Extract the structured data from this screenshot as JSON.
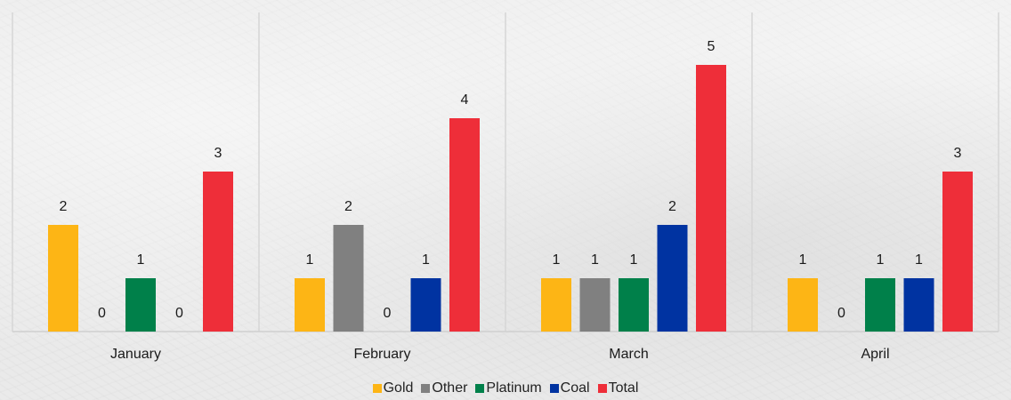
{
  "chart_data": {
    "type": "bar",
    "categories": [
      "January",
      "February",
      "March",
      "April"
    ],
    "series": [
      {
        "name": "Gold",
        "color": "#FDB515",
        "values": [
          2,
          1,
          1,
          1
        ]
      },
      {
        "name": "Other",
        "color": "#808080",
        "values": [
          0,
          2,
          1,
          0
        ]
      },
      {
        "name": "Platinum",
        "color": "#00804A",
        "values": [
          1,
          0,
          1,
          1
        ]
      },
      {
        "name": "Coal",
        "color": "#0033A1",
        "values": [
          0,
          1,
          2,
          1
        ]
      },
      {
        "name": "Total",
        "color": "#EE2E39",
        "values": [
          3,
          4,
          5,
          3
        ]
      }
    ],
    "ylim": [
      0,
      5
    ],
    "grid": false,
    "legend_position": "bottom",
    "data_labels": true,
    "category_separators": true
  }
}
